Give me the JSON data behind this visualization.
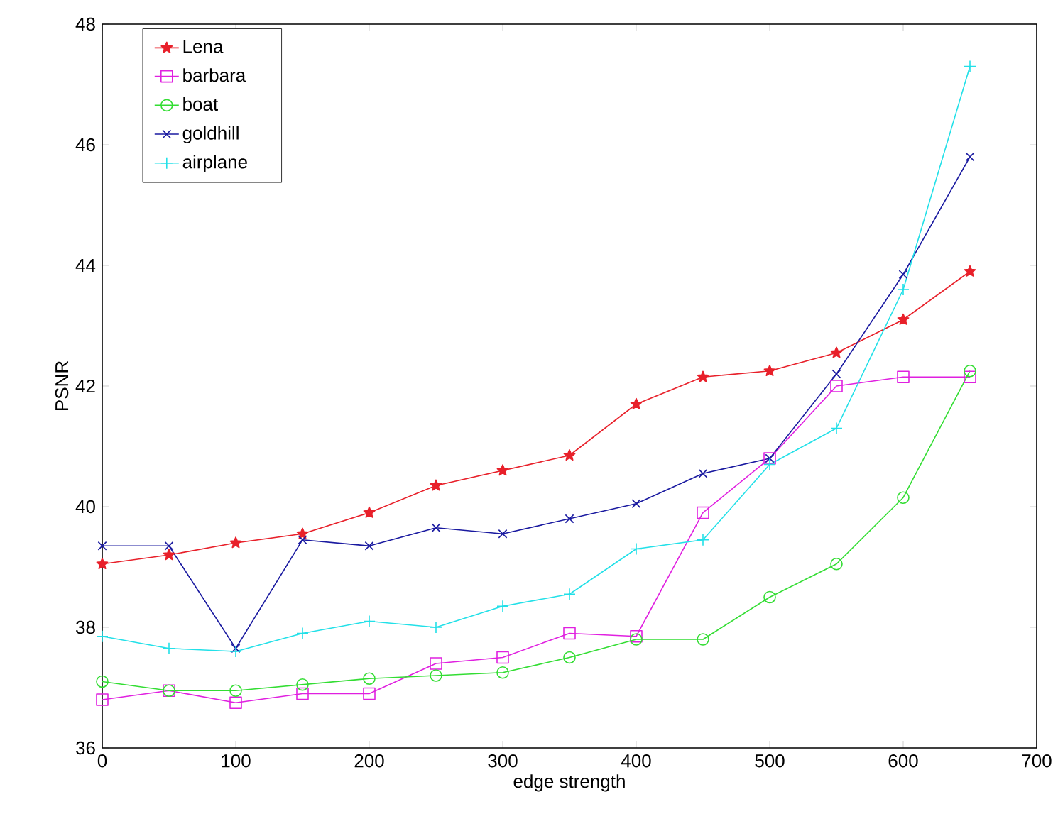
{
  "chart_data": {
    "type": "line",
    "xlabel": "edge strength",
    "ylabel": "PSNR",
    "x": [
      0,
      50,
      100,
      150,
      200,
      250,
      300,
      350,
      400,
      450,
      500,
      550,
      600,
      650
    ],
    "xlim": [
      0,
      700
    ],
    "xticks": [
      0,
      100,
      200,
      300,
      400,
      500,
      600,
      700
    ],
    "ylim": [
      36,
      48
    ],
    "yticks": [
      36,
      38,
      40,
      42,
      44,
      46,
      48
    ],
    "legend": "top left",
    "line_style": "solid",
    "series": [
      {
        "name": "Lena",
        "color": "#e8202a",
        "marker": "star",
        "values": [
          39.05,
          39.2,
          39.4,
          39.55,
          39.9,
          40.35,
          40.6,
          40.85,
          41.7,
          42.15,
          42.25,
          42.55,
          43.1,
          43.9
        ]
      },
      {
        "name": "barbara",
        "color": "#e020e0",
        "marker": "square",
        "values": [
          36.8,
          36.95,
          36.75,
          36.9,
          36.9,
          37.4,
          37.5,
          37.9,
          37.85,
          39.9,
          40.8,
          42.0,
          42.15,
          42.15
        ]
      },
      {
        "name": "boat",
        "color": "#33dd33",
        "marker": "circle",
        "values": [
          37.1,
          36.95,
          36.95,
          37.05,
          37.15,
          37.2,
          37.25,
          37.5,
          37.8,
          37.8,
          38.5,
          39.05,
          40.15,
          42.25
        ]
      },
      {
        "name": "goldhill",
        "color": "#1a1aa0",
        "marker": "cross",
        "values": [
          39.35,
          39.35,
          37.65,
          39.45,
          39.35,
          39.65,
          39.55,
          39.8,
          40.05,
          40.55,
          40.8,
          42.2,
          43.85,
          45.8
        ]
      },
      {
        "name": "airplane",
        "color": "#22e0e8",
        "marker": "plus",
        "values": [
          37.85,
          37.65,
          37.6,
          37.9,
          38.1,
          38.0,
          38.35,
          38.55,
          39.3,
          39.45,
          40.7,
          41.3,
          43.6,
          47.3
        ]
      }
    ]
  }
}
